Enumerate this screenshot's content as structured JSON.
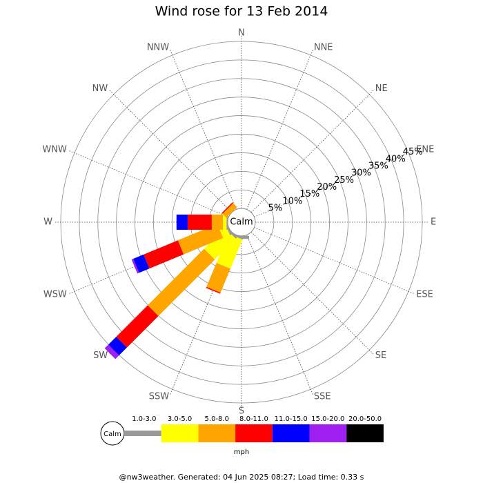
{
  "chart_data": {
    "type": "windrose",
    "title": "Wind rose for 13 Feb 2014",
    "categories": [
      "N",
      "NNE",
      "NE",
      "ENE",
      "E",
      "ESE",
      "SE",
      "SSE",
      "S",
      "SSW",
      "SW",
      "WSW",
      "W",
      "WNW",
      "NW",
      "NNW"
    ],
    "series": [
      {
        "name": "1.0-3.0",
        "color": "#999999",
        "values": [
          0,
          0,
          0,
          0,
          0,
          0,
          0,
          0,
          0.8,
          0.5,
          0.5,
          0.5,
          0.3,
          0,
          0,
          0
        ]
      },
      {
        "name": "3.0-5.0",
        "color": "#ffff00",
        "values": [
          0,
          0,
          0,
          0,
          0,
          0,
          0,
          0,
          0,
          8.5,
          8,
          2,
          1,
          0,
          0,
          0
        ]
      },
      {
        "name": "5.0-8.0",
        "color": "#ffa500",
        "values": [
          0,
          0,
          0,
          0,
          0,
          0,
          0,
          0,
          0,
          7,
          21.5,
          11.5,
          3,
          0,
          1.5,
          0
        ]
      },
      {
        "name": "8.0-11.0",
        "color": "#ff0000",
        "values": [
          0,
          0,
          0,
          0,
          0,
          0,
          0,
          0,
          0,
          0.3,
          12,
          10,
          6.5,
          0,
          0.3,
          0
        ]
      },
      {
        "name": "11.0-15.0",
        "color": "#0000ff",
        "values": [
          0,
          0,
          0,
          0,
          0,
          0,
          0,
          0,
          0,
          0,
          3,
          3,
          3,
          0,
          0,
          0
        ]
      },
      {
        "name": "15.0-20.0",
        "color": "#a020f0",
        "values": [
          0,
          0,
          0,
          0,
          0,
          0,
          0,
          0,
          0,
          0,
          1.4,
          0.5,
          0,
          0,
          0,
          0
        ]
      },
      {
        "name": "20.0-50.0",
        "color": "#000000",
        "values": [
          0,
          0,
          0,
          0,
          0,
          0,
          0,
          0,
          0,
          0,
          0,
          0,
          0,
          0,
          0,
          0
        ]
      }
    ],
    "rlim": [
      0,
      45
    ],
    "rticks": [
      {
        "value": 5,
        "label": "5%"
      },
      {
        "value": 10,
        "label": "10%"
      },
      {
        "value": 15,
        "label": "15%"
      },
      {
        "value": 20,
        "label": "20%"
      },
      {
        "value": 25,
        "label": "25%"
      },
      {
        "value": 30,
        "label": "30%"
      },
      {
        "value": 35,
        "label": "35%"
      },
      {
        "value": 40,
        "label": "40%"
      },
      {
        "value": 45,
        "label": "45%"
      }
    ],
    "calm_label": "Calm",
    "unit": "mph"
  },
  "footer": "@nw3weather. Generated: 04 Jun 2025 08:27; Load time: 0.33 s"
}
